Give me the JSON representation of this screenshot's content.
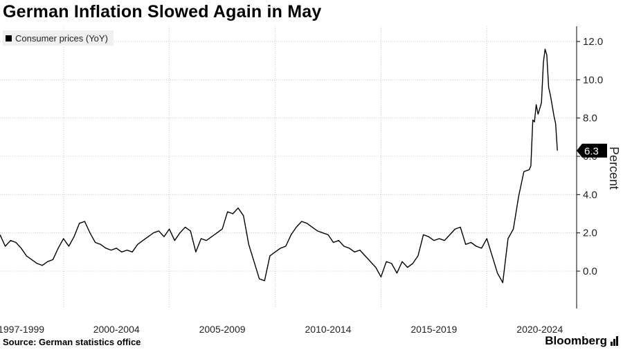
{
  "title": "German Inflation Slowed Again in May",
  "legend": "Consumer prices (YoY)",
  "source": "Source: German statistics office",
  "brand": "Bloomberg",
  "chart_data": {
    "type": "line",
    "title": "German Inflation Slowed Again in May",
    "ylabel": "Percent",
    "xlabel": "",
    "ylim": [
      -1.8,
      13.0
    ],
    "xlim": [
      1997.0,
      2023.75
    ],
    "yticks": [
      0.0,
      2.0,
      4.0,
      6.0,
      8.0,
      10.0,
      12.0
    ],
    "ytick_labels": [
      "0.0",
      "2.0",
      "4.0",
      "6.0",
      "8.0",
      "10.0",
      "12.0"
    ],
    "xtick_positions": [
      1998.0,
      2002.5,
      2007.5,
      2012.5,
      2017.5,
      2022.5
    ],
    "xtick_labels": [
      "1997-1999",
      "2000-2004",
      "2005-2009",
      "2010-2014",
      "2015-2019",
      "2020-2024"
    ],
    "vgrid_years": [
      2000,
      2005,
      2010,
      2015,
      2020
    ],
    "last_value": 6.3,
    "last_label": "6.3",
    "accent": "#000000",
    "series": [
      {
        "name": "Consumer prices (YoY)",
        "x": [
          1997.0,
          1997.25,
          1997.5,
          1997.75,
          1998.0,
          1998.25,
          1998.5,
          1998.75,
          1999.0,
          1999.25,
          1999.5,
          1999.75,
          2000.0,
          2000.25,
          2000.5,
          2000.75,
          2001.0,
          2001.25,
          2001.5,
          2001.75,
          2002.0,
          2002.25,
          2002.5,
          2002.75,
          2003.0,
          2003.25,
          2003.5,
          2003.75,
          2004.0,
          2004.25,
          2004.5,
          2004.75,
          2005.0,
          2005.25,
          2005.5,
          2005.75,
          2006.0,
          2006.25,
          2006.5,
          2006.75,
          2007.0,
          2007.25,
          2007.5,
          2007.75,
          2008.0,
          2008.25,
          2008.5,
          2008.75,
          2009.0,
          2009.25,
          2009.5,
          2009.75,
          2010.0,
          2010.25,
          2010.5,
          2010.75,
          2011.0,
          2011.25,
          2011.5,
          2011.75,
          2012.0,
          2012.25,
          2012.5,
          2012.75,
          2013.0,
          2013.25,
          2013.5,
          2013.75,
          2014.0,
          2014.25,
          2014.5,
          2014.75,
          2015.0,
          2015.25,
          2015.5,
          2015.75,
          2016.0,
          2016.25,
          2016.5,
          2016.75,
          2017.0,
          2017.25,
          2017.5,
          2017.75,
          2018.0,
          2018.25,
          2018.5,
          2018.75,
          2019.0,
          2019.25,
          2019.5,
          2019.75,
          2020.0,
          2020.25,
          2020.5,
          2020.75,
          2021.0,
          2021.25,
          2021.5,
          2021.75,
          2022.0,
          2022.08,
          2022.17,
          2022.25,
          2022.33,
          2022.42,
          2022.5,
          2022.58,
          2022.67,
          2022.75,
          2022.83,
          2022.92,
          2023.0,
          2023.08,
          2023.17,
          2023.25,
          2023.33
        ],
        "values": [
          1.9,
          1.3,
          1.6,
          1.5,
          1.2,
          0.8,
          0.6,
          0.4,
          0.3,
          0.5,
          0.6,
          1.2,
          1.7,
          1.3,
          1.8,
          2.5,
          2.6,
          2.0,
          1.5,
          1.4,
          1.2,
          1.1,
          1.2,
          1.0,
          1.1,
          1.0,
          1.4,
          1.6,
          1.8,
          2.0,
          2.1,
          1.8,
          2.2,
          1.6,
          2.0,
          2.3,
          2.1,
          1.0,
          1.7,
          1.6,
          1.8,
          2.0,
          2.2,
          3.1,
          3.0,
          3.3,
          2.9,
          1.4,
          0.5,
          -0.4,
          -0.5,
          0.8,
          1.0,
          1.2,
          1.3,
          1.9,
          2.3,
          2.6,
          2.5,
          2.3,
          2.1,
          2.0,
          1.9,
          1.5,
          1.6,
          1.3,
          1.2,
          1.0,
          1.1,
          0.8,
          0.5,
          0.2,
          -0.3,
          0.5,
          0.4,
          -0.1,
          0.5,
          0.2,
          0.4,
          0.8,
          1.9,
          1.8,
          1.6,
          1.7,
          1.6,
          1.9,
          2.2,
          2.3,
          1.4,
          1.5,
          1.3,
          1.2,
          1.7,
          0.8,
          -0.1,
          -0.6,
          1.7,
          2.2,
          3.9,
          5.2,
          5.3,
          5.5,
          7.9,
          7.8,
          8.7,
          8.2,
          8.5,
          8.8,
          10.9,
          11.6,
          11.3,
          9.6,
          9.2,
          8.7,
          8.1,
          7.7,
          6.3
        ]
      }
    ]
  }
}
